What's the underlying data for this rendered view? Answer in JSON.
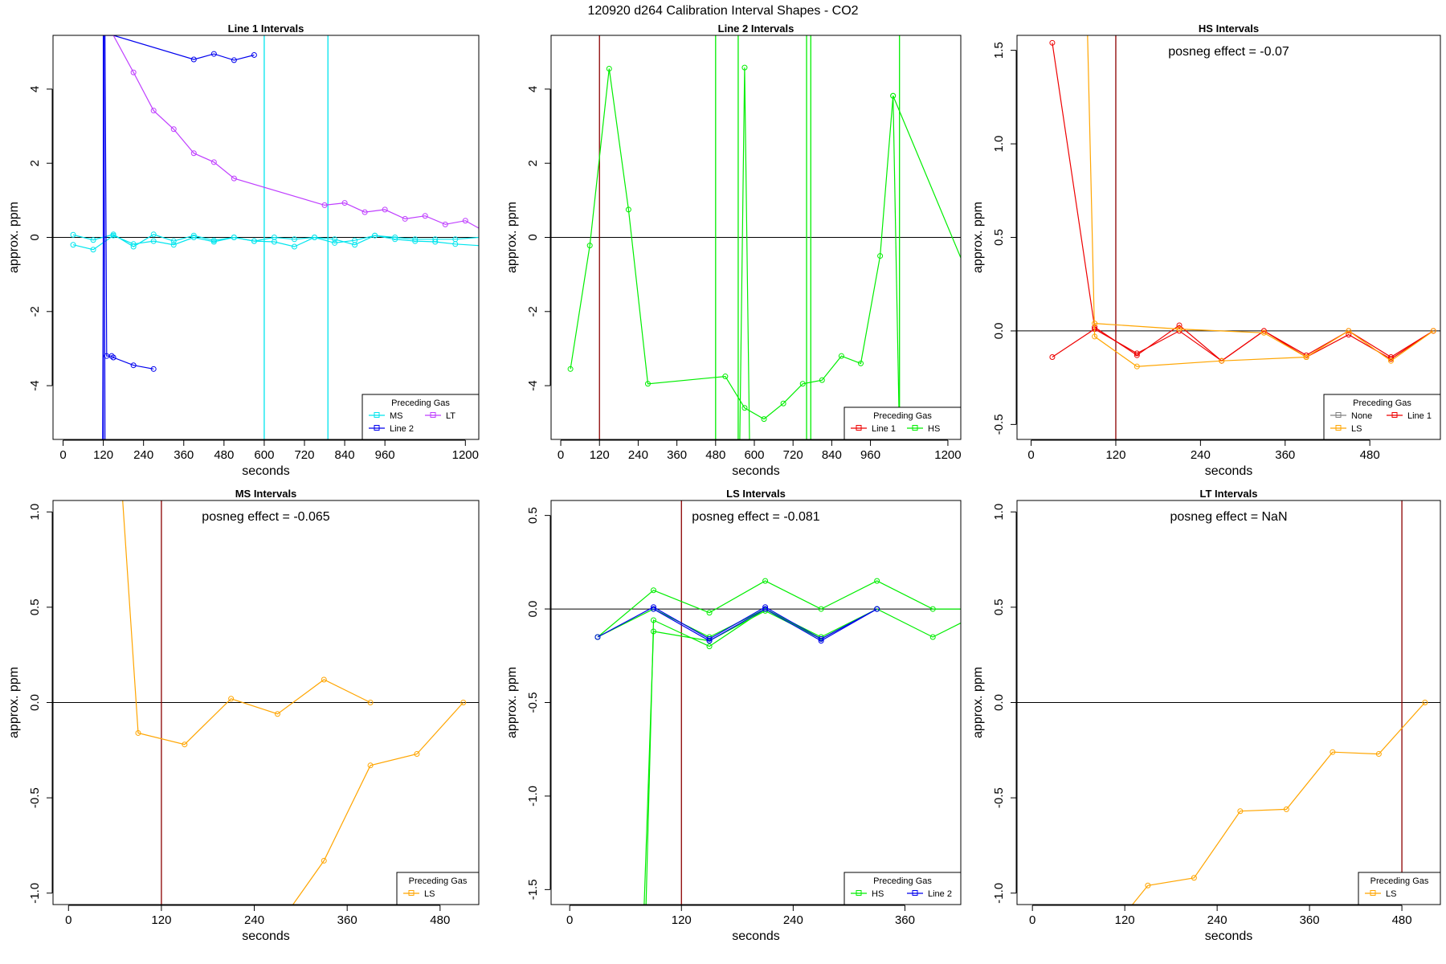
{
  "title": "120920  d264   Calibration Interval Shapes - CO2",
  "colors": {
    "MS": "#00e5ee",
    "Line 2": "#0000ee",
    "LT": "#bf3eff",
    "Line 1": "#ee0000",
    "HS": "#00ee00",
    "LS": "#ffa500",
    "None": "#808080",
    "vline_dark": "#8b0000",
    "vline_cyan": "#00e5ee",
    "vline_green": "#00ee00"
  },
  "chart_data": [
    {
      "type": "line",
      "title": "Line 1 Intervals",
      "xlabel": "seconds",
      "ylabel": "approx. ppm",
      "xlim": [
        -30,
        1240
      ],
      "ylim": [
        -5.45,
        5.45
      ],
      "xticks": [
        0,
        120,
        240,
        360,
        480,
        600,
        720,
        840,
        960,
        1200
      ],
      "yticks": [
        -4,
        -2,
        0,
        2,
        4
      ],
      "hline": 0,
      "vlines": [
        {
          "x": 120,
          "color": "Line 2"
        },
        {
          "x": 600,
          "color": "MS"
        },
        {
          "x": 790,
          "color": "MS"
        }
      ],
      "legend": {
        "title": "Preceding Gas",
        "position": "bottom-right",
        "entries": [
          "MS",
          "LT",
          "Line 2"
        ]
      },
      "series": [
        {
          "name": "MS",
          "x": [
            30,
            90,
            150,
            210,
            270,
            330,
            390,
            450,
            510,
            570,
            630,
            690,
            750,
            810,
            870,
            930,
            990,
            1050,
            1110,
            1170,
            1240
          ],
          "y": [
            -0.2,
            -0.33,
            0.05,
            -0.18,
            -0.1,
            -0.2,
            0.0,
            -0.12,
            0.0,
            -0.1,
            -0.12,
            -0.25,
            0.0,
            -0.15,
            -0.08,
            0.05,
            -0.05,
            -0.1,
            -0.12,
            -0.18,
            -0.22
          ]
        },
        {
          "name": "MS",
          "x": [
            30,
            90,
            150,
            210,
            270,
            330,
            390,
            450,
            510,
            570,
            630,
            690,
            750,
            810,
            870,
            930,
            990,
            1050,
            1110,
            1170,
            1240
          ],
          "y": [
            0.07,
            -0.07,
            0.08,
            -0.25,
            0.08,
            -0.1,
            0.05,
            -0.08,
            0.0,
            -0.1,
            0.0,
            -0.05,
            0.0,
            -0.05,
            -0.2,
            0.05,
            0.0,
            -0.05,
            -0.05,
            -0.05,
            0.0
          ]
        },
        {
          "name": "Line 2",
          "x": [
            125,
            130,
            145,
            150,
            210,
            270
          ],
          "y": [
            5.45,
            -3.2,
            -3.2,
            -3.24,
            -3.45,
            -3.55
          ]
        },
        {
          "name": "Line 2",
          "x": [
            120,
            150,
            390,
            450,
            510,
            570
          ],
          "y": [
            5.45,
            5.45,
            4.8,
            4.95,
            4.78,
            4.92
          ]
        },
        {
          "name": "Line 2",
          "x": [
            118,
            122,
            125
          ],
          "y": [
            -5.45,
            5.45,
            -5.45
          ]
        },
        {
          "name": "LT",
          "x": [
            130,
            150,
            210,
            270,
            330,
            390,
            450,
            510,
            780,
            840,
            900,
            960,
            1020,
            1080,
            1140,
            1200,
            1240
          ],
          "y": [
            5.45,
            5.45,
            4.45,
            3.42,
            2.92,
            2.27,
            2.03,
            1.59,
            0.87,
            0.93,
            0.68,
            0.75,
            0.5,
            0.58,
            0.35,
            0.45,
            0.25
          ]
        }
      ]
    },
    {
      "type": "line",
      "title": "Line 2 Intervals",
      "xlabel": "seconds",
      "ylabel": "approx. ppm",
      "xlim": [
        -30,
        1240
      ],
      "ylim": [
        -5.45,
        5.45
      ],
      "xticks": [
        0,
        120,
        240,
        360,
        480,
        600,
        720,
        840,
        960,
        1200
      ],
      "yticks": [
        -4,
        -2,
        0,
        2,
        4
      ],
      "hline": 0,
      "vlines": [
        {
          "x": 120,
          "color": "vline_dark"
        },
        {
          "x": 480,
          "color": "vline_green"
        },
        {
          "x": 550,
          "color": "vline_green"
        },
        {
          "x": 762,
          "color": "vline_green"
        },
        {
          "x": 775,
          "color": "vline_green"
        },
        {
          "x": 1050,
          "color": "vline_green"
        }
      ],
      "legend": {
        "title": "Preceding Gas",
        "position": "bottom-right",
        "entries": [
          "Line 1",
          "HS"
        ]
      },
      "series": [
        {
          "name": "HS",
          "x": [
            30,
            90,
            150,
            210,
            270,
            510,
            570,
            630,
            690,
            750,
            810,
            870,
            930,
            990,
            1030,
            1240
          ],
          "y": [
            -3.55,
            -0.22,
            4.55,
            0.75,
            -3.95,
            -3.75,
            -4.6,
            -4.9,
            -4.48,
            -3.95,
            -3.85,
            -3.2,
            -3.4,
            -0.5,
            3.82,
            -0.55
          ]
        },
        {
          "name": "HS",
          "x": [
            555,
            570,
            585
          ],
          "y": [
            -5.45,
            4.58,
            -5.45
          ]
        },
        {
          "name": "HS",
          "x": [
            1030,
            1050
          ],
          "y": [
            3.82,
            -5.45
          ]
        }
      ]
    },
    {
      "type": "line",
      "title": "HS Intervals",
      "xlabel": "seconds",
      "ylabel": "approx. ppm",
      "xlim": [
        -20,
        580
      ],
      "ylim": [
        -0.58,
        1.58
      ],
      "xticks": [
        0,
        120,
        240,
        360,
        480
      ],
      "yticks": [
        -0.5,
        0.0,
        0.5,
        1.0,
        1.5
      ],
      "hline": 0,
      "vlines": [
        {
          "x": 120,
          "color": "vline_dark"
        }
      ],
      "annotation": "posneg effect = -0.07",
      "legend": {
        "title": "Preceding Gas",
        "position": "bottom-right",
        "entries": [
          "None",
          "Line 1",
          "LS"
        ]
      },
      "series": [
        {
          "name": "Line 1",
          "x": [
            30,
            90,
            150,
            210,
            270,
            330,
            390,
            450,
            510,
            570
          ],
          "y": [
            1.54,
            0.02,
            -0.13,
            0.03,
            -0.16,
            0.0,
            -0.14,
            -0.02,
            -0.15,
            0.0
          ]
        },
        {
          "name": "Line 1",
          "x": [
            30,
            90,
            150,
            210,
            270,
            330,
            390,
            450,
            510,
            570
          ],
          "y": [
            -0.14,
            0.01,
            -0.12,
            0.0,
            -0.16,
            0.0,
            -0.13,
            0.0,
            -0.14,
            0.0
          ]
        },
        {
          "name": "LS",
          "x": [
            80,
            90,
            150,
            270,
            390,
            450,
            510,
            570
          ],
          "y": [
            1.58,
            -0.03,
            -0.19,
            -0.16,
            -0.14,
            0.0,
            -0.16,
            0.0
          ]
        },
        {
          "name": "LS",
          "x": [
            90,
            210,
            330,
            390
          ],
          "y": [
            0.04,
            0.01,
            -0.01,
            -0.14
          ]
        }
      ]
    },
    {
      "type": "line",
      "title": "MS Intervals",
      "xlabel": "seconds",
      "ylabel": "approx. ppm",
      "xlim": [
        -20,
        530
      ],
      "ylim": [
        -1.06,
        1.06
      ],
      "xticks": [
        0,
        120,
        240,
        360,
        480
      ],
      "yticks": [
        -1.0,
        -0.5,
        0.0,
        0.5,
        1.0
      ],
      "hline": 0,
      "vlines": [
        {
          "x": 120,
          "color": "vline_dark"
        }
      ],
      "annotation": "posneg effect = -0.065",
      "legend": {
        "title": "Preceding Gas",
        "position": "bottom-right",
        "entries": [
          "LS"
        ]
      },
      "series": [
        {
          "name": "LS",
          "x": [
            70,
            90,
            150,
            210,
            270,
            330,
            390
          ],
          "y": [
            1.06,
            -0.16,
            -0.22,
            0.02,
            -0.06,
            0.12,
            0.0
          ]
        },
        {
          "name": "LS",
          "x": [
            290,
            330,
            390,
            450,
            510
          ],
          "y": [
            -1.06,
            -0.83,
            -0.33,
            -0.27,
            0.0
          ]
        }
      ]
    },
    {
      "type": "line",
      "title": "LS Intervals",
      "xlabel": "seconds",
      "ylabel": "approx. ppm",
      "xlim": [
        -20,
        420
      ],
      "ylim": [
        -1.58,
        0.58
      ],
      "xticks": [
        0,
        120,
        240,
        360
      ],
      "yticks": [
        -1.5,
        -1.0,
        -0.5,
        0.0,
        0.5
      ],
      "hline": 0,
      "vlines": [
        {
          "x": 120,
          "color": "vline_dark"
        }
      ],
      "annotation": "posneg effect = -0.081",
      "legend": {
        "title": "Preceding Gas",
        "position": "bottom-right",
        "entries": [
          "HS",
          "Line 2"
        ]
      },
      "series": [
        {
          "name": "HS",
          "x": [
            30,
            90,
            150,
            210,
            270,
            330,
            390,
            450
          ],
          "y": [
            -0.15,
            0.1,
            -0.02,
            0.15,
            0.0,
            0.15,
            0.0,
            0.0
          ]
        },
        {
          "name": "HS",
          "x": [
            30,
            90,
            150,
            210,
            270,
            330,
            390,
            450
          ],
          "y": [
            -0.15,
            0.0,
            -0.15,
            0.0,
            -0.15,
            0.0,
            -0.15,
            0.0
          ]
        },
        {
          "name": "HS",
          "x": [
            82,
            90,
            150,
            210,
            270,
            330
          ],
          "y": [
            -1.58,
            -0.06,
            -0.2,
            0.0,
            -0.16,
            0.0
          ]
        },
        {
          "name": "HS",
          "x": [
            80,
            90,
            150,
            210,
            270
          ],
          "y": [
            -1.58,
            -0.12,
            -0.17,
            -0.01,
            -0.16
          ]
        },
        {
          "name": "Line 2",
          "x": [
            30,
            90,
            150,
            210,
            270,
            330
          ],
          "y": [
            -0.15,
            0.01,
            -0.16,
            0.01,
            -0.16,
            0.0
          ]
        },
        {
          "name": "Line 2",
          "x": [
            90,
            150,
            210,
            270,
            330
          ],
          "y": [
            0.0,
            -0.17,
            0.0,
            -0.17,
            0.0
          ]
        }
      ]
    },
    {
      "type": "line",
      "title": "LT Intervals",
      "xlabel": "seconds",
      "ylabel": "approx. ppm",
      "xlim": [
        -20,
        530
      ],
      "ylim": [
        -1.06,
        1.06
      ],
      "xticks": [
        0,
        120,
        240,
        360,
        480
      ],
      "yticks": [
        -1.0,
        -0.5,
        0.0,
        0.5,
        1.0
      ],
      "hline": 0,
      "vlines": [
        {
          "x": 480,
          "color": "vline_dark"
        }
      ],
      "annotation": "posneg effect = NaN",
      "legend": {
        "title": "Preceding Gas",
        "position": "bottom-right",
        "entries": [
          "LS"
        ]
      },
      "series": [
        {
          "name": "LS",
          "x": [
            130,
            150,
            210,
            270,
            330,
            390,
            450,
            510
          ],
          "y": [
            -1.06,
            -0.96,
            -0.92,
            -0.57,
            -0.56,
            -0.26,
            -0.27,
            0.0
          ]
        }
      ]
    }
  ]
}
